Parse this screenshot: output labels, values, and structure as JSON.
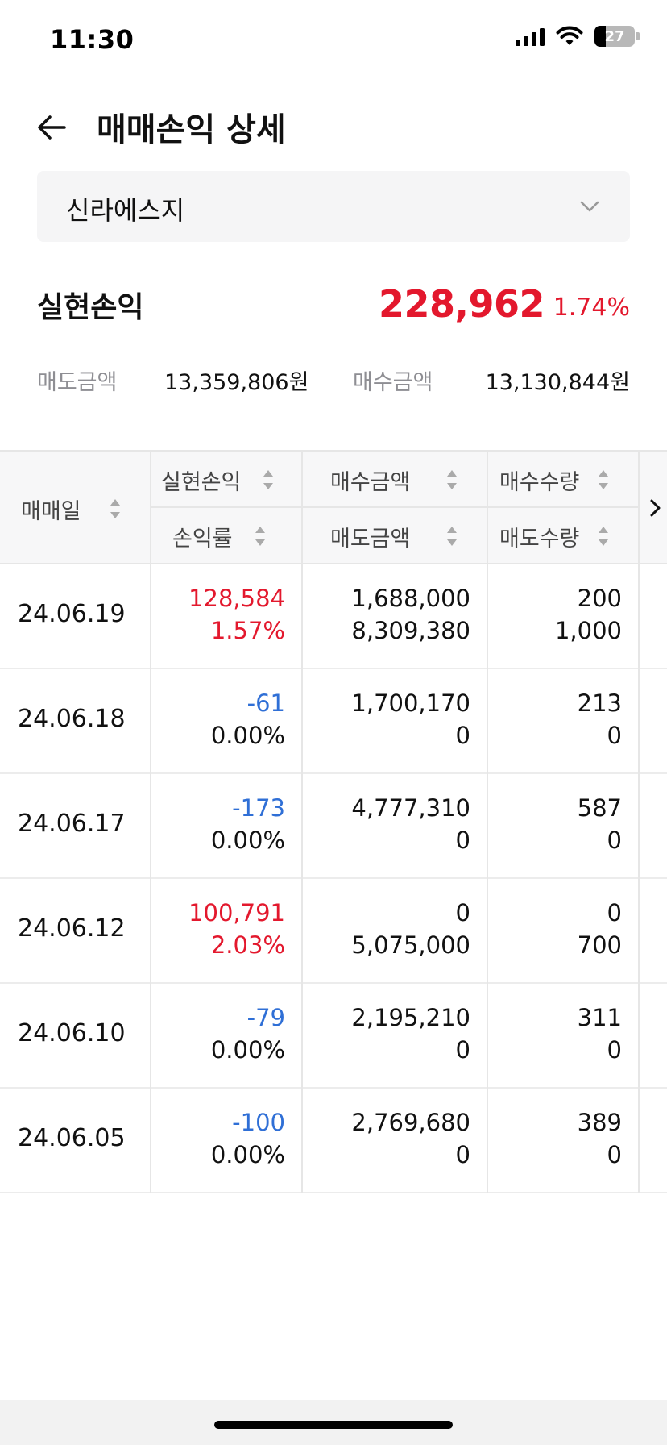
{
  "status_bar": {
    "time": "11:30",
    "battery_level": "27",
    "battery_fraction": 0.27
  },
  "header": {
    "title": "매매손익 상세"
  },
  "stock_selector": {
    "selected": "신라에스지"
  },
  "summary": {
    "label": "실현손익",
    "value": "228,962",
    "rate": "1.74%",
    "sell_label": "매도금액",
    "sell_value": "13,359,806원",
    "buy_label": "매수금액",
    "buy_value": "13,130,844원"
  },
  "table": {
    "headers": {
      "date": "매매일",
      "pnl": "실현손익",
      "rate": "손익률",
      "buy_amount": "매수금액",
      "sell_amount": "매도금액",
      "buy_qty": "매수수량",
      "sell_qty": "매도수량"
    },
    "rows": [
      {
        "date": "24.06.19",
        "pnl": "128,584",
        "rate": "1.57%",
        "buy_amount": "1,688,000",
        "sell_amount": "8,309,380",
        "buy_qty": "200",
        "sell_qty": "1,000",
        "tone": "red"
      },
      {
        "date": "24.06.18",
        "pnl": "-61",
        "rate": "0.00%",
        "buy_amount": "1,700,170",
        "sell_amount": "0",
        "buy_qty": "213",
        "sell_qty": "0",
        "tone": "blue"
      },
      {
        "date": "24.06.17",
        "pnl": "-173",
        "rate": "0.00%",
        "buy_amount": "4,777,310",
        "sell_amount": "0",
        "buy_qty": "587",
        "sell_qty": "0",
        "tone": "blue"
      },
      {
        "date": "24.06.12",
        "pnl": "100,791",
        "rate": "2.03%",
        "buy_amount": "0",
        "sell_amount": "5,075,000",
        "buy_qty": "0",
        "sell_qty": "700",
        "tone": "red"
      },
      {
        "date": "24.06.10",
        "pnl": "-79",
        "rate": "0.00%",
        "buy_amount": "2,195,210",
        "sell_amount": "0",
        "buy_qty": "311",
        "sell_qty": "0",
        "tone": "blue"
      },
      {
        "date": "24.06.05",
        "pnl": "-100",
        "rate": "0.00%",
        "buy_amount": "2,769,680",
        "sell_amount": "0",
        "buy_qty": "389",
        "sell_qty": "0",
        "tone": "blue"
      }
    ]
  },
  "colors": {
    "profit": "#e3182d",
    "loss": "#2f6fd6",
    "muted": "#8e8e93"
  },
  "icons": {
    "back": "arrow-left-icon",
    "dropdown": "chevron-down-icon",
    "sort": "sort-icon",
    "scroll_next": "chevron-right-icon"
  }
}
